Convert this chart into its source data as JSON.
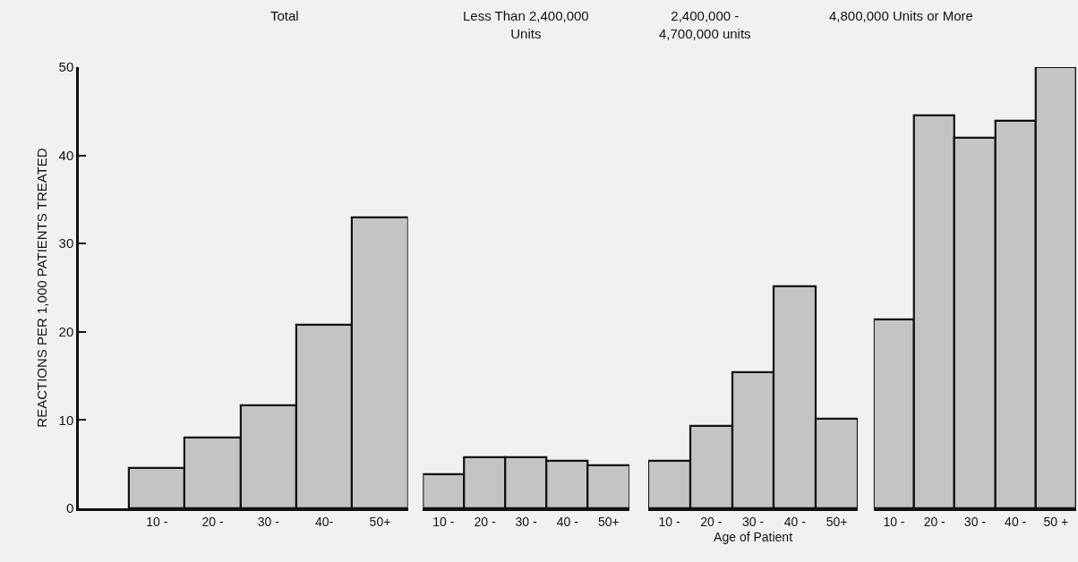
{
  "chart_data": [
    {
      "type": "bar",
      "title": "Total",
      "categories": [
        "10 -",
        "20 -",
        "30 -",
        "40-",
        "50+"
      ],
      "values": [
        4.6,
        8.0,
        11.7,
        20.8,
        33.0
      ],
      "color": "#c4c4c4",
      "ylabel": "REACTIONS PER 1,000 PATIENTS TREATED",
      "ylim": [
        0,
        50
      ],
      "yticks": [
        0,
        10,
        20,
        30,
        40,
        50
      ]
    },
    {
      "type": "bar",
      "title": "Less Than 2,400,000\nUnits",
      "categories": [
        "10 -",
        "20 -",
        "30 -",
        "40 -",
        "50+"
      ],
      "values": [
        3.9,
        5.8,
        5.8,
        5.4,
        4.9
      ],
      "color": "#c4c4c4",
      "ylim": [
        0,
        50
      ],
      "tick_labels": "x"
    },
    {
      "type": "bar",
      "title": "2,400,000 -\n4,700,000 units",
      "categories": [
        "10 -",
        "20 -",
        "30 -",
        "40 -",
        "50+"
      ],
      "values": [
        5.4,
        9.3,
        15.4,
        25.2,
        10.1
      ],
      "color": "#c4c4c4",
      "ylim": [
        0,
        50
      ],
      "tick_labels": "x",
      "xlabel": "Age of Patient"
    },
    {
      "type": "bar",
      "title": "4,800,000 Units or More",
      "categories": [
        "10 -",
        "20 -",
        "30 -",
        "40 -",
        "50 +"
      ],
      "values": [
        21.4,
        44.5,
        42.0,
        43.9,
        50.0
      ],
      "color": "#c4c4c4",
      "ylim": [
        0,
        50
      ],
      "tick_labels": "x"
    }
  ]
}
